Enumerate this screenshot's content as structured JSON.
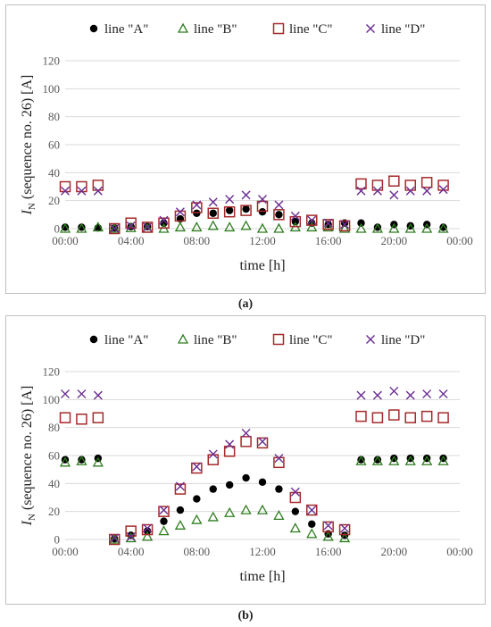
{
  "colors": {
    "A": "#000000",
    "B": "#2e7d1e",
    "C": "#a52a2a",
    "D": "#6a2c91",
    "grid": "#d9d9d9",
    "axis_text": "#595959"
  },
  "chart_data": [
    {
      "type": "scatter",
      "label": "a",
      "xlabel": "time [h]",
      "ylabel_main": "I",
      "ylabel_sub": "N",
      "ylabel_rest": " (sequence no. 26) [A]",
      "x_ticks": [
        "00:00",
        "04:00",
        "08:00",
        "12:00",
        "16:00",
        "20:00",
        "00:00"
      ],
      "y_ticks": [
        "0",
        "20",
        "40",
        "60",
        "80",
        "100",
        "120"
      ],
      "xlim": [
        0,
        24
      ],
      "ylim": [
        0,
        120
      ],
      "grid": "horizontal",
      "legend_position": "top",
      "x": [
        0,
        1,
        2,
        3,
        4,
        5,
        6,
        7,
        8,
        9,
        10,
        11,
        12,
        13,
        14,
        15,
        16,
        17,
        18,
        19,
        20,
        21,
        22,
        23
      ],
      "series": [
        {
          "name": "line \"A\"",
          "marker": "circle",
          "values": [
            1,
            1,
            0.5,
            0.5,
            1.5,
            1.5,
            4,
            7,
            11,
            11,
            13,
            14,
            12,
            10,
            5,
            4,
            3,
            4,
            4,
            1,
            3,
            2,
            3,
            1
          ]
        },
        {
          "name": "line \"B\"",
          "marker": "triangle",
          "values": [
            0,
            0,
            1,
            0,
            0.5,
            0,
            0,
            1,
            1,
            2,
            1,
            2,
            0,
            0,
            1,
            1,
            1,
            0,
            0,
            0,
            0,
            0,
            0,
            0
          ]
        },
        {
          "name": "line \"C\"",
          "marker": "square",
          "values": [
            30,
            30,
            31,
            0,
            4,
            1,
            4,
            9,
            15,
            11,
            12,
            13,
            16,
            10,
            5,
            6,
            3,
            2,
            32,
            31,
            34,
            31,
            33,
            31
          ]
        },
        {
          "name": "line \"D\"",
          "marker": "cross",
          "values": [
            27,
            27,
            27,
            0,
            2,
            1,
            6,
            12,
            17,
            19,
            21,
            24,
            21,
            17,
            9,
            6,
            4,
            3,
            27,
            27,
            24,
            27,
            27,
            28
          ]
        }
      ]
    },
    {
      "type": "scatter",
      "label": "b",
      "xlabel": "time [h]",
      "ylabel_main": "I",
      "ylabel_sub": "N",
      "ylabel_rest": " (sequence no. 26) [A]",
      "x_ticks": [
        "00:00",
        "04:00",
        "08:00",
        "12:00",
        "16:00",
        "20:00",
        "00:00"
      ],
      "y_ticks": [
        "0",
        "20",
        "40",
        "60",
        "80",
        "100",
        "120"
      ],
      "xlim": [
        0,
        24
      ],
      "ylim": [
        0,
        120
      ],
      "grid": "horizontal",
      "legend_position": "top",
      "x": [
        0,
        1,
        2,
        3,
        4,
        5,
        6,
        7,
        8,
        9,
        10,
        11,
        12,
        13,
        14,
        15,
        16,
        17,
        18,
        19,
        20,
        21,
        22,
        23
      ],
      "series": [
        {
          "name": "line \"A\"",
          "marker": "circle",
          "values": [
            57,
            57,
            58,
            0.5,
            3,
            6,
            13,
            21,
            29,
            36,
            39,
            44,
            41,
            36,
            20,
            11,
            4,
            3,
            57,
            57,
            58,
            58,
            58,
            58
          ]
        },
        {
          "name": "line \"B\"",
          "marker": "triangle",
          "values": [
            55,
            56,
            55,
            0,
            1,
            2,
            6,
            10,
            14,
            16,
            19,
            21,
            21,
            17,
            8,
            4,
            2,
            1,
            56,
            56,
            56,
            56,
            56,
            56
          ]
        },
        {
          "name": "line \"C\"",
          "marker": "square",
          "values": [
            87,
            86,
            87,
            0,
            6,
            7,
            20,
            36,
            51,
            57,
            63,
            70,
            69,
            55,
            30,
            21,
            9,
            7,
            88,
            87,
            89,
            87,
            88,
            87
          ]
        },
        {
          "name": "line \"D\"",
          "marker": "cross",
          "values": [
            104,
            104,
            103,
            1,
            2,
            8,
            21,
            38,
            52,
            61,
            68,
            76,
            70,
            58,
            34,
            21,
            10,
            8,
            103,
            103,
            106,
            103,
            104,
            104
          ]
        }
      ]
    }
  ],
  "captions": [
    "(a)",
    "(b)"
  ]
}
